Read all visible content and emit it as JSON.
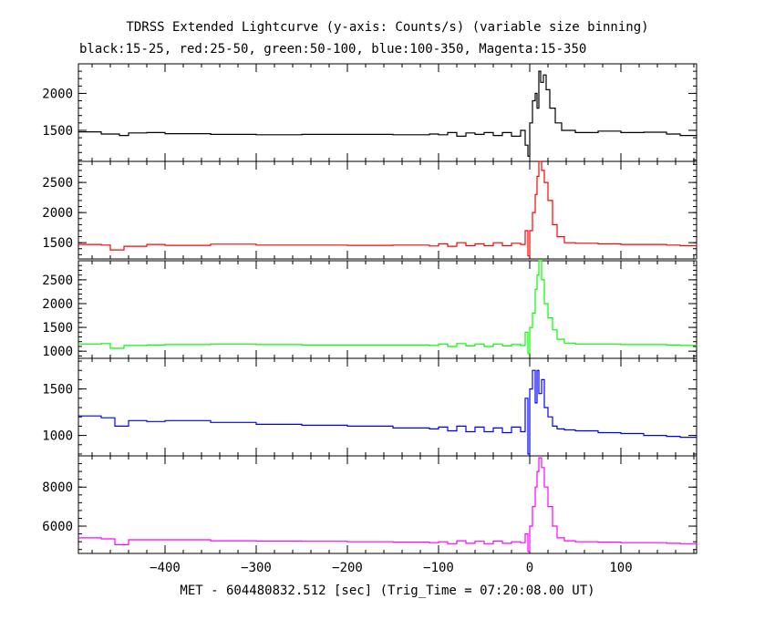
{
  "chart_data": {
    "type": "line",
    "title": "TDRSS Extended Lightcurve (y-axis: Counts/s) (variable size binning)",
    "subtitle": "black:15-25, red:25-50, green:50-100, blue:100-350, Magenta:15-350",
    "xlabel": "MET - 604480832.512 [sec] (Trig_Time = 07:20:08.00 UT)",
    "xlim": [
      -495,
      183
    ],
    "xticks": [
      -400,
      -300,
      -200,
      -100,
      0,
      100
    ],
    "xtick_labels": [
      "−400",
      "−300",
      "−200",
      "−100",
      "0",
      "100"
    ],
    "panels": [
      {
        "name": "black:15-25",
        "color": "#000000",
        "ylim": [
          1080,
          2400
        ],
        "yticks": [
          1500,
          2000
        ],
        "points": [
          [
            -495,
            1480
          ],
          [
            -470,
            1450
          ],
          [
            -450,
            1430
          ],
          [
            -440,
            1465
          ],
          [
            -420,
            1470
          ],
          [
            -400,
            1455
          ],
          [
            -350,
            1445
          ],
          [
            -300,
            1440
          ],
          [
            -250,
            1445
          ],
          [
            -200,
            1445
          ],
          [
            -150,
            1440
          ],
          [
            -110,
            1450
          ],
          [
            -100,
            1440
          ],
          [
            -90,
            1470
          ],
          [
            -80,
            1420
          ],
          [
            -70,
            1465
          ],
          [
            -60,
            1445
          ],
          [
            -50,
            1470
          ],
          [
            -40,
            1430
          ],
          [
            -30,
            1470
          ],
          [
            -20,
            1420
          ],
          [
            -10,
            1500
          ],
          [
            -5,
            1300
          ],
          [
            -2,
            1150
          ],
          [
            0,
            1600
          ],
          [
            3,
            1900
          ],
          [
            6,
            2000
          ],
          [
            8,
            1800
          ],
          [
            10,
            2300
          ],
          [
            12,
            2150
          ],
          [
            15,
            2250
          ],
          [
            18,
            2050
          ],
          [
            22,
            1800
          ],
          [
            28,
            1600
          ],
          [
            35,
            1500
          ],
          [
            50,
            1470
          ],
          [
            75,
            1490
          ],
          [
            100,
            1470
          ],
          [
            125,
            1475
          ],
          [
            150,
            1450
          ],
          [
            165,
            1430
          ],
          [
            183,
            1440
          ]
        ]
      },
      {
        "name": "red:25-50",
        "color": "#ff0000",
        "ylim": [
          1230,
          2850
        ],
        "yticks": [
          1500,
          2000,
          2500
        ],
        "points": [
          [
            -495,
            1470
          ],
          [
            -470,
            1460
          ],
          [
            -460,
            1380
          ],
          [
            -445,
            1440
          ],
          [
            -420,
            1470
          ],
          [
            -400,
            1455
          ],
          [
            -350,
            1475
          ],
          [
            -300,
            1460
          ],
          [
            -250,
            1460
          ],
          [
            -200,
            1455
          ],
          [
            -150,
            1460
          ],
          [
            -110,
            1445
          ],
          [
            -100,
            1480
          ],
          [
            -90,
            1440
          ],
          [
            -80,
            1500
          ],
          [
            -70,
            1450
          ],
          [
            -60,
            1480
          ],
          [
            -50,
            1450
          ],
          [
            -40,
            1500
          ],
          [
            -30,
            1450
          ],
          [
            -20,
            1490
          ],
          [
            -10,
            1470
          ],
          [
            -5,
            1700
          ],
          [
            -2,
            1280
          ],
          [
            0,
            1700
          ],
          [
            3,
            2000
          ],
          [
            6,
            2300
          ],
          [
            8,
            2600
          ],
          [
            10,
            2850
          ],
          [
            13,
            2700
          ],
          [
            16,
            2500
          ],
          [
            20,
            2200
          ],
          [
            25,
            1800
          ],
          [
            30,
            1600
          ],
          [
            38,
            1500
          ],
          [
            50,
            1490
          ],
          [
            75,
            1480
          ],
          [
            100,
            1470
          ],
          [
            125,
            1470
          ],
          [
            150,
            1460
          ],
          [
            165,
            1450
          ],
          [
            183,
            1470
          ]
        ]
      },
      {
        "name": "green:50-100",
        "color": "#00ff00",
        "ylim": [
          850,
          2900
        ],
        "yticks": [
          1000,
          1500,
          2000,
          2500
        ],
        "points": [
          [
            -495,
            1150
          ],
          [
            -470,
            1160
          ],
          [
            -460,
            1060
          ],
          [
            -445,
            1120
          ],
          [
            -420,
            1130
          ],
          [
            -400,
            1140
          ],
          [
            -350,
            1150
          ],
          [
            -300,
            1140
          ],
          [
            -250,
            1130
          ],
          [
            -200,
            1130
          ],
          [
            -150,
            1130
          ],
          [
            -110,
            1120
          ],
          [
            -100,
            1150
          ],
          [
            -90,
            1100
          ],
          [
            -80,
            1160
          ],
          [
            -70,
            1110
          ],
          [
            -60,
            1150
          ],
          [
            -50,
            1100
          ],
          [
            -40,
            1150
          ],
          [
            -30,
            1110
          ],
          [
            -20,
            1140
          ],
          [
            -10,
            1120
          ],
          [
            -5,
            1400
          ],
          [
            -2,
            950
          ],
          [
            0,
            1500
          ],
          [
            3,
            1800
          ],
          [
            6,
            2300
          ],
          [
            8,
            2600
          ],
          [
            10,
            2900
          ],
          [
            13,
            2500
          ],
          [
            16,
            2000
          ],
          [
            20,
            1700
          ],
          [
            25,
            1450
          ],
          [
            30,
            1250
          ],
          [
            38,
            1170
          ],
          [
            50,
            1150
          ],
          [
            75,
            1150
          ],
          [
            100,
            1140
          ],
          [
            125,
            1140
          ],
          [
            150,
            1130
          ],
          [
            165,
            1120
          ],
          [
            183,
            1130
          ]
        ]
      },
      {
        "name": "blue:100-350",
        "color": "#0000ff",
        "ylim": [
          780,
          1830
        ],
        "yticks": [
          1000,
          1500
        ],
        "points": [
          [
            -495,
            1210
          ],
          [
            -470,
            1190
          ],
          [
            -455,
            1100
          ],
          [
            -440,
            1160
          ],
          [
            -420,
            1150
          ],
          [
            -400,
            1160
          ],
          [
            -350,
            1140
          ],
          [
            -300,
            1120
          ],
          [
            -250,
            1110
          ],
          [
            -200,
            1100
          ],
          [
            -150,
            1080
          ],
          [
            -110,
            1070
          ],
          [
            -100,
            1090
          ],
          [
            -90,
            1050
          ],
          [
            -80,
            1100
          ],
          [
            -70,
            1040
          ],
          [
            -60,
            1090
          ],
          [
            -50,
            1040
          ],
          [
            -40,
            1080
          ],
          [
            -30,
            1030
          ],
          [
            -20,
            1090
          ],
          [
            -10,
            1040
          ],
          [
            -5,
            1400
          ],
          [
            -2,
            800
          ],
          [
            0,
            1500
          ],
          [
            3,
            1700
          ],
          [
            6,
            1350
          ],
          [
            8,
            1700
          ],
          [
            10,
            1450
          ],
          [
            13,
            1600
          ],
          [
            16,
            1300
          ],
          [
            20,
            1200
          ],
          [
            25,
            1100
          ],
          [
            30,
            1070
          ],
          [
            38,
            1060
          ],
          [
            50,
            1050
          ],
          [
            75,
            1030
          ],
          [
            100,
            1020
          ],
          [
            125,
            1000
          ],
          [
            150,
            990
          ],
          [
            165,
            980
          ],
          [
            183,
            985
          ]
        ]
      },
      {
        "name": "Magenta:15-350",
        "color": "#ff00ff",
        "ylim": [
          4600,
          9600
        ],
        "yticks": [
          6000,
          8000
        ],
        "points": [
          [
            -495,
            5400
          ],
          [
            -470,
            5350
          ],
          [
            -455,
            5050
          ],
          [
            -440,
            5300
          ],
          [
            -420,
            5300
          ],
          [
            -400,
            5300
          ],
          [
            -350,
            5250
          ],
          [
            -300,
            5230
          ],
          [
            -250,
            5220
          ],
          [
            -200,
            5200
          ],
          [
            -150,
            5180
          ],
          [
            -110,
            5150
          ],
          [
            -100,
            5200
          ],
          [
            -90,
            5100
          ],
          [
            -80,
            5250
          ],
          [
            -70,
            5120
          ],
          [
            -60,
            5220
          ],
          [
            -50,
            5100
          ],
          [
            -40,
            5230
          ],
          [
            -30,
            5120
          ],
          [
            -20,
            5200
          ],
          [
            -10,
            5150
          ],
          [
            -5,
            5600
          ],
          [
            -2,
            4700
          ],
          [
            0,
            6000
          ],
          [
            3,
            7000
          ],
          [
            6,
            8000
          ],
          [
            8,
            8800
          ],
          [
            10,
            9500
          ],
          [
            13,
            9000
          ],
          [
            16,
            8000
          ],
          [
            20,
            7000
          ],
          [
            25,
            6000
          ],
          [
            30,
            5400
          ],
          [
            38,
            5250
          ],
          [
            50,
            5200
          ],
          [
            75,
            5180
          ],
          [
            100,
            5150
          ],
          [
            125,
            5150
          ],
          [
            150,
            5120
          ],
          [
            165,
            5100
          ],
          [
            183,
            5120
          ]
        ]
      }
    ]
  }
}
